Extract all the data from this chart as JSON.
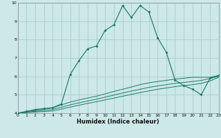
{
  "xlabel": "Humidex (Indice chaleur)",
  "bg_color": "#cce8e8",
  "grid_color": "#aacccc",
  "line_color": "#1a7a6a",
  "xlim": [
    0,
    23
  ],
  "ylim": [
    4,
    10
  ],
  "xticks": [
    0,
    1,
    2,
    3,
    4,
    5,
    6,
    7,
    8,
    9,
    10,
    11,
    12,
    13,
    14,
    15,
    16,
    17,
    18,
    19,
    20,
    21,
    22,
    23
  ],
  "yticks": [
    4,
    5,
    6,
    7,
    8,
    9,
    10
  ],
  "line_peak_x": [
    0,
    1,
    2,
    3,
    4,
    5,
    6,
    7,
    8,
    9,
    10,
    11,
    12,
    13,
    14,
    15,
    16,
    17,
    18,
    19,
    20,
    21,
    22,
    23
  ],
  "line_peak_y": [
    4.0,
    4.1,
    4.2,
    4.25,
    4.3,
    4.5,
    6.1,
    6.85,
    7.5,
    7.65,
    8.5,
    8.8,
    9.85,
    9.2,
    9.85,
    9.5,
    8.1,
    7.3,
    5.8,
    5.5,
    5.3,
    5.0,
    5.9,
    6.05
  ],
  "line_b1_x": [
    0,
    1,
    2,
    3,
    4,
    5,
    6,
    7,
    8,
    9,
    10,
    11,
    12,
    13,
    14,
    15,
    16,
    17,
    18,
    19,
    20,
    21,
    22,
    23
  ],
  "line_b1_y": [
    4.0,
    4.08,
    4.15,
    4.22,
    4.28,
    4.45,
    4.6,
    4.72,
    4.82,
    4.92,
    5.05,
    5.18,
    5.3,
    5.42,
    5.55,
    5.65,
    5.72,
    5.78,
    5.85,
    5.9,
    5.95,
    5.95,
    5.95,
    6.05
  ],
  "line_b2_x": [
    0,
    1,
    2,
    3,
    4,
    5,
    6,
    7,
    8,
    9,
    10,
    11,
    12,
    13,
    14,
    15,
    16,
    17,
    18,
    19,
    20,
    21,
    22,
    23
  ],
  "line_b2_y": [
    4.0,
    4.05,
    4.1,
    4.15,
    4.2,
    4.32,
    4.45,
    4.56,
    4.66,
    4.76,
    4.87,
    4.98,
    5.1,
    5.2,
    5.3,
    5.4,
    5.48,
    5.55,
    5.62,
    5.67,
    5.72,
    5.78,
    5.88,
    6.0
  ],
  "line_b3_x": [
    0,
    1,
    2,
    3,
    4,
    5,
    6,
    7,
    8,
    9,
    10,
    11,
    12,
    13,
    14,
    15,
    16,
    17,
    18,
    19,
    20,
    21,
    22,
    23
  ],
  "line_b3_y": [
    4.0,
    4.03,
    4.06,
    4.09,
    4.12,
    4.22,
    4.33,
    4.43,
    4.53,
    4.62,
    4.72,
    4.82,
    4.92,
    5.02,
    5.12,
    5.21,
    5.3,
    5.37,
    5.44,
    5.5,
    5.55,
    5.62,
    5.75,
    5.95
  ]
}
